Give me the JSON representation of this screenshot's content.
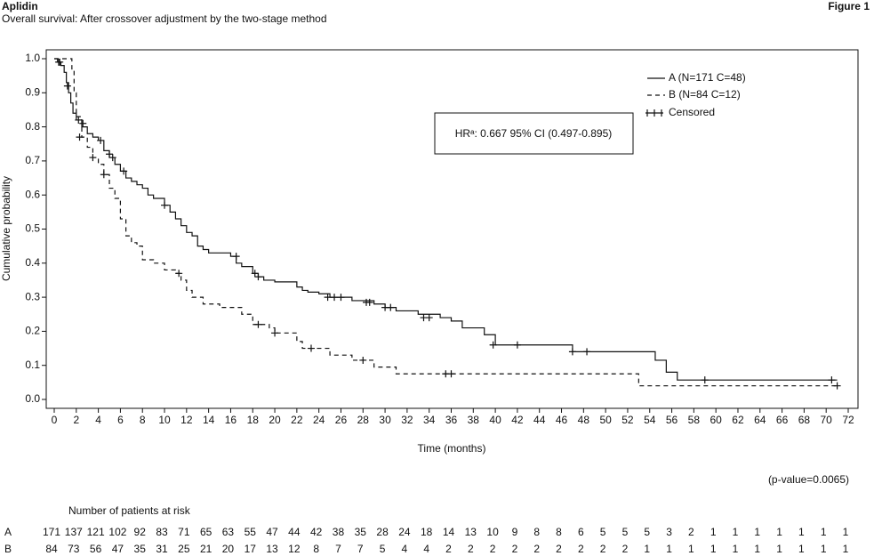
{
  "chart_data": {
    "type": "km",
    "title": "Aplidin",
    "figure_label": "Figure 1",
    "subtitle": "Overall survival: After crossover adjustment by the two-stage method",
    "xlabel": "Time (months)",
    "ylabel": "Cumulative probability",
    "xlim": [
      0,
      72
    ],
    "ylim": [
      0,
      1
    ],
    "xticks": [
      0,
      2,
      4,
      6,
      8,
      10,
      12,
      14,
      16,
      18,
      20,
      22,
      24,
      26,
      28,
      30,
      32,
      34,
      36,
      38,
      40,
      42,
      44,
      46,
      48,
      50,
      52,
      54,
      56,
      58,
      60,
      62,
      64,
      66,
      68,
      70,
      72
    ],
    "yticks": [
      {
        "value": 0,
        "label": "0.0"
      },
      0.1,
      0.2,
      0.3,
      0.4,
      0.5,
      0.6,
      0.7,
      0.8,
      0.9,
      {
        "value": 1,
        "label": "1.0"
      }
    ],
    "censored_label": "Censored",
    "annotation": "HRᵃ: 0.667 95% CI (0.497-0.895)",
    "p_value": "(p-value=0.0065)",
    "series": [
      {
        "name": "A (N=171 C=48)",
        "color": "#111111",
        "dash": "solid",
        "x": [
          0,
          0.3,
          0.6,
          0.9,
          1.1,
          1.3,
          1.5,
          1.7,
          2,
          2.5,
          3,
          3.5,
          4,
          4.5,
          5,
          5.5,
          6,
          6.5,
          7,
          7.5,
          8,
          8.5,
          9,
          10,
          10.5,
          11,
          11.5,
          12,
          12.5,
          13,
          13.5,
          14,
          16,
          16.5,
          17,
          18,
          18.5,
          19,
          20,
          22,
          22.5,
          23,
          24,
          25,
          27,
          29,
          30,
          31,
          33,
          35,
          36,
          37,
          39,
          40,
          47,
          54.5,
          55.5,
          56.5,
          71
        ],
        "values": [
          1,
          0.99,
          0.98,
          0.96,
          0.93,
          0.9,
          0.87,
          0.84,
          0.82,
          0.8,
          0.78,
          0.77,
          0.76,
          0.73,
          0.71,
          0.69,
          0.67,
          0.65,
          0.64,
          0.63,
          0.62,
          0.6,
          0.59,
          0.57,
          0.55,
          0.53,
          0.51,
          0.49,
          0.48,
          0.45,
          0.44,
          0.43,
          0.42,
          0.4,
          0.39,
          0.37,
          0.36,
          0.35,
          0.345,
          0.33,
          0.32,
          0.315,
          0.31,
          0.3,
          0.29,
          0.28,
          0.27,
          0.26,
          0.25,
          0.24,
          0.23,
          0.21,
          0.19,
          0.16,
          0.14,
          0.115,
          0.08,
          0.057,
          0.057
        ],
        "censored_x": [
          0.4,
          1.2,
          2.2,
          2.6,
          4.2,
          5,
          5.3,
          6.3,
          10,
          16.5,
          18.2,
          18.5,
          24.8,
          25.4,
          26,
          28.3,
          28.6,
          30,
          30.5,
          33.5,
          34,
          39.8,
          42,
          47,
          48.3,
          59,
          70.5
        ],
        "censored_y": [
          0.99,
          0.92,
          0.82,
          0.81,
          0.76,
          0.72,
          0.71,
          0.67,
          0.57,
          0.42,
          0.37,
          0.36,
          0.3,
          0.3,
          0.3,
          0.285,
          0.285,
          0.27,
          0.27,
          0.24,
          0.24,
          0.16,
          0.16,
          0.14,
          0.14,
          0.057,
          0.057
        ]
      },
      {
        "name": "B (N=84 C=12)",
        "color": "#111111",
        "dash": "dashed",
        "x": [
          0,
          1.6,
          1.8,
          2,
          2.5,
          3,
          3.5,
          4,
          4.5,
          5,
          5.5,
          6,
          6.5,
          7,
          7.5,
          8,
          9,
          10,
          11,
          11.5,
          12,
          12.5,
          13.5,
          15,
          17,
          18,
          19.5,
          20,
          22,
          22.5,
          25,
          27,
          29,
          31,
          53,
          71
        ],
        "values": [
          1,
          0.97,
          0.9,
          0.83,
          0.77,
          0.74,
          0.71,
          0.69,
          0.66,
          0.62,
          0.59,
          0.53,
          0.48,
          0.46,
          0.45,
          0.41,
          0.4,
          0.38,
          0.37,
          0.35,
          0.32,
          0.3,
          0.28,
          0.27,
          0.25,
          0.22,
          0.21,
          0.195,
          0.17,
          0.15,
          0.13,
          0.115,
          0.095,
          0.075,
          0.04,
          0.04
        ],
        "censored_x": [
          0.5,
          2.3,
          3.5,
          4.5,
          11.3,
          18.5,
          20,
          23.3,
          28,
          35.5,
          36,
          71
        ],
        "censored_y": [
          0.99,
          0.77,
          0.71,
          0.66,
          0.37,
          0.22,
          0.195,
          0.15,
          0.115,
          0.075,
          0.075,
          0.04
        ]
      }
    ],
    "risk_table": {
      "title": "Number of patients at risk",
      "rows": [
        {
          "label": "A",
          "values": [
            171,
            137,
            121,
            102,
            92,
            83,
            71,
            65,
            63,
            55,
            47,
            44,
            42,
            38,
            35,
            28,
            24,
            18,
            14,
            13,
            10,
            9,
            8,
            8,
            6,
            5,
            5,
            5,
            3,
            2,
            1,
            1,
            1,
            1,
            1,
            1,
            1
          ]
        },
        {
          "label": "B",
          "values": [
            84,
            73,
            56,
            47,
            35,
            31,
            25,
            21,
            20,
            17,
            13,
            12,
            8,
            7,
            7,
            5,
            4,
            4,
            2,
            2,
            2,
            2,
            2,
            2,
            2,
            2,
            2,
            1,
            1,
            1,
            1,
            1,
            1,
            1,
            1,
            1,
            1
          ]
        }
      ]
    }
  }
}
